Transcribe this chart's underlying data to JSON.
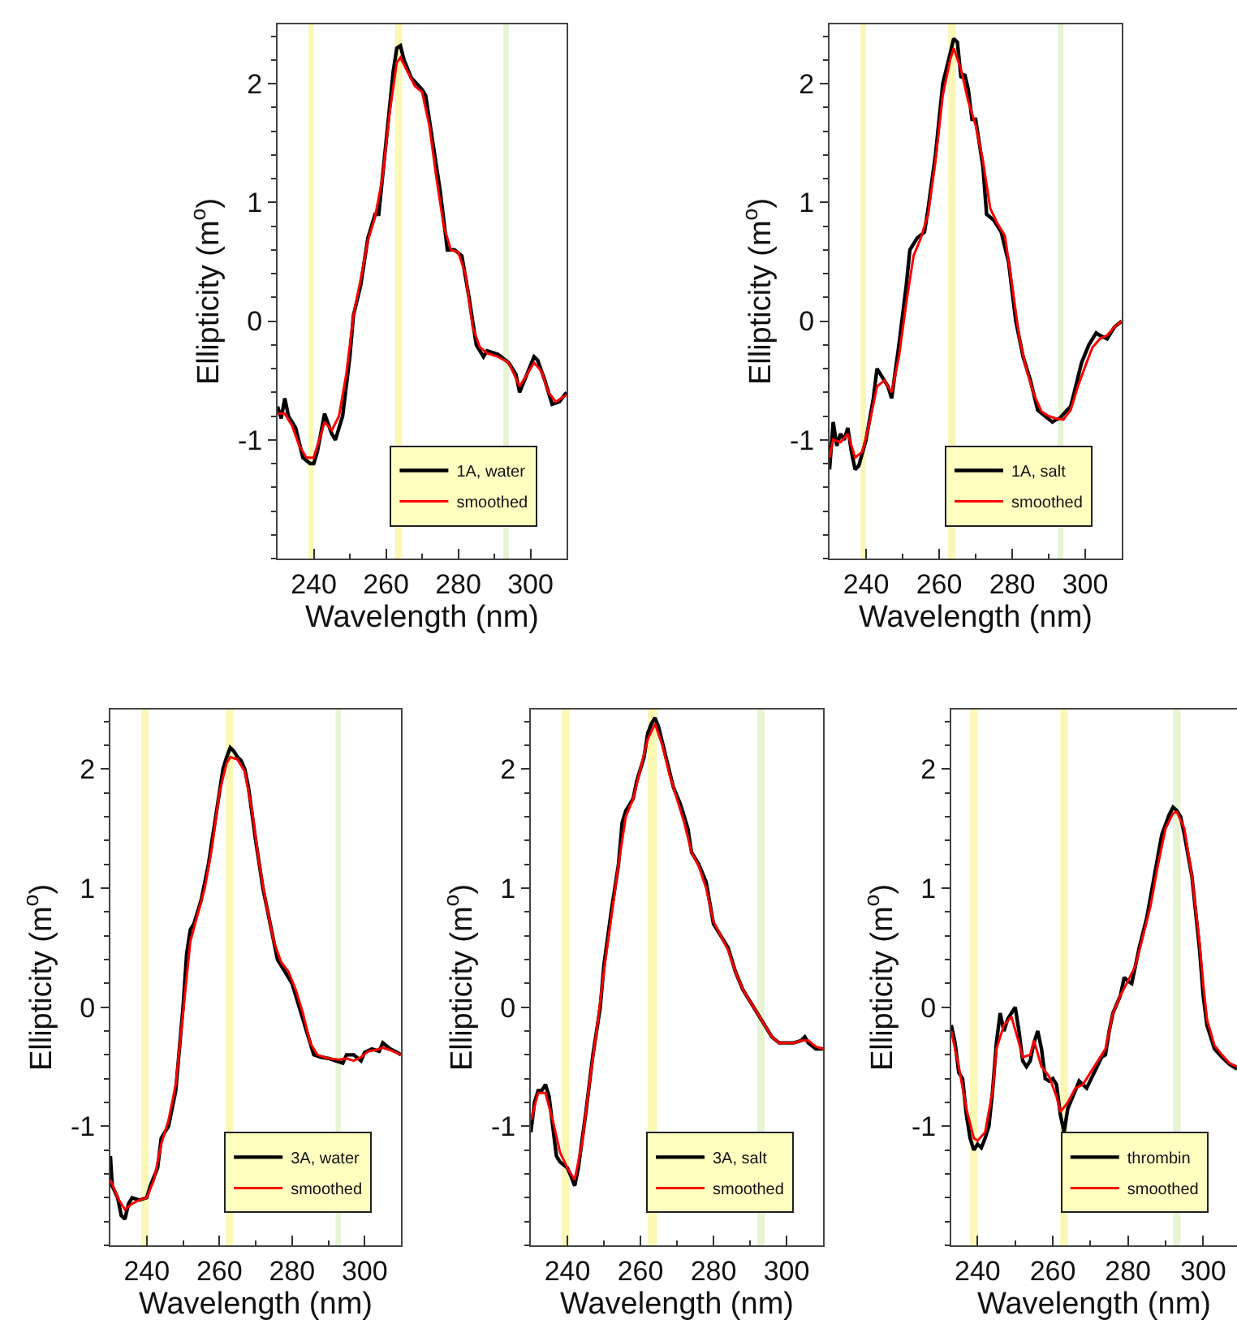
{
  "chart_data": [
    {
      "type": "line",
      "xlabel": "Wavelength (nm)",
      "ylabel": "Ellipticity (m$^{o}$)",
      "xlim": [
        230,
        310
      ],
      "ylim": [
        -2,
        2.5
      ],
      "xticks": [
        240,
        260,
        280,
        300
      ],
      "yticks": [
        -1,
        0,
        1,
        2
      ],
      "legend": "bottom right",
      "bands": [
        {
          "axis": "x",
          "from": 238.5,
          "to": 240,
          "color": "#fbf7b5"
        },
        {
          "axis": "x",
          "from": 262.5,
          "to": 264.5,
          "color": "#fbf7b5"
        },
        {
          "axis": "x",
          "from": 292.5,
          "to": 294,
          "color": "#e6f4d4"
        }
      ],
      "series": [
        {
          "name": "1A, water",
          "color": "#000000",
          "x": [
            230,
            231,
            232,
            233,
            235,
            237,
            239,
            240,
            241,
            243,
            245,
            246,
            248,
            250,
            251,
            253,
            255,
            257,
            258,
            260,
            262,
            263,
            264,
            265,
            267,
            270,
            271,
            273,
            275,
            277,
            279,
            281,
            283,
            285,
            287,
            288,
            291,
            294,
            296,
            297,
            299,
            301,
            302,
            304,
            306,
            308,
            310
          ],
          "values": [
            -0.72,
            -0.82,
            -0.65,
            -0.8,
            -0.9,
            -1.15,
            -1.2,
            -1.2,
            -1.1,
            -0.78,
            -0.95,
            -1.0,
            -0.8,
            -0.3,
            0.05,
            0.3,
            0.7,
            0.9,
            0.9,
            1.5,
            2.1,
            2.3,
            2.32,
            2.2,
            2.05,
            1.95,
            1.9,
            1.5,
            1.1,
            0.6,
            0.6,
            0.55,
            0.2,
            -0.2,
            -0.3,
            -0.25,
            -0.28,
            -0.35,
            -0.45,
            -0.6,
            -0.45,
            -0.3,
            -0.33,
            -0.5,
            -0.7,
            -0.68,
            -0.6
          ]
        },
        {
          "name": "smoothed",
          "color": "#ff0000",
          "x": [
            230,
            232,
            234,
            236,
            238,
            240,
            242,
            243,
            245,
            247,
            249,
            251,
            253,
            255,
            257,
            259,
            261,
            263,
            264,
            266,
            268,
            270,
            272,
            274,
            276,
            278,
            280,
            282,
            284,
            286,
            288,
            291,
            294,
            297,
            299,
            301,
            303,
            305,
            307,
            310
          ],
          "values": [
            -0.78,
            -0.78,
            -0.88,
            -1.05,
            -1.15,
            -1.15,
            -0.95,
            -0.85,
            -0.92,
            -0.8,
            -0.45,
            0.05,
            0.35,
            0.68,
            0.88,
            1.2,
            1.75,
            2.18,
            2.22,
            2.1,
            1.98,
            1.93,
            1.65,
            1.2,
            0.8,
            0.6,
            0.58,
            0.4,
            -0.05,
            -0.22,
            -0.27,
            -0.3,
            -0.35,
            -0.55,
            -0.45,
            -0.35,
            -0.42,
            -0.6,
            -0.68,
            -0.62
          ]
        }
      ]
    },
    {
      "type": "line",
      "xlabel": "Wavelength (nm)",
      "ylabel": "Ellipticity (m$^{o}$)",
      "xlim": [
        230,
        310
      ],
      "ylim": [
        -2,
        2.5
      ],
      "xticks": [
        240,
        260,
        280,
        300
      ],
      "yticks": [
        -1,
        0,
        1,
        2
      ],
      "legend": "bottom right",
      "bands": [
        {
          "axis": "x",
          "from": 238.5,
          "to": 240,
          "color": "#fbf7b5"
        },
        {
          "axis": "x",
          "from": 262.5,
          "to": 264.5,
          "color": "#fbf7b5"
        },
        {
          "axis": "x",
          "from": 292.5,
          "to": 294,
          "color": "#e6f4d4"
        }
      ],
      "series": [
        {
          "name": "1A, salt",
          "color": "#000000",
          "x": [
            230,
            231,
            232,
            233,
            234,
            235,
            236,
            237,
            238,
            240,
            242,
            243,
            244,
            246,
            247,
            249,
            251,
            252,
            254,
            256,
            257,
            259,
            261,
            263,
            264,
            265,
            266,
            267,
            268,
            269,
            270,
            272,
            273,
            275,
            277,
            279,
            281,
            283,
            285,
            287,
            289,
            291,
            292,
            293,
            295,
            296,
            297,
            299,
            301,
            303,
            304,
            306,
            308,
            310
          ],
          "values": [
            -1.25,
            -0.85,
            -1.05,
            -0.95,
            -1.0,
            -0.9,
            -1.1,
            -1.25,
            -1.22,
            -1.0,
            -0.65,
            -0.4,
            -0.45,
            -0.55,
            -0.65,
            -0.2,
            0.3,
            0.6,
            0.7,
            0.75,
            0.95,
            1.4,
            2.0,
            2.25,
            2.38,
            2.35,
            2.05,
            2.08,
            1.95,
            1.7,
            1.7,
            1.3,
            0.9,
            0.85,
            0.75,
            0.5,
            0.0,
            -0.3,
            -0.5,
            -0.75,
            -0.8,
            -0.85,
            -0.83,
            -0.82,
            -0.75,
            -0.72,
            -0.6,
            -0.35,
            -0.2,
            -0.1,
            -0.12,
            -0.15,
            -0.05,
            0.0
          ]
        },
        {
          "name": "smoothed",
          "color": "#ff0000",
          "x": [
            230,
            231,
            233,
            235,
            237,
            239,
            241,
            243,
            245,
            247,
            249,
            251,
            253,
            255,
            257,
            259,
            261,
            263,
            264,
            266,
            268,
            270,
            272,
            274,
            276,
            278,
            280,
            282,
            284,
            286,
            288,
            290,
            292,
            294,
            296,
            298,
            300,
            302,
            304,
            306,
            308,
            310
          ],
          "values": [
            -1.15,
            -1.0,
            -1.02,
            -0.95,
            -1.15,
            -1.1,
            -0.85,
            -0.55,
            -0.5,
            -0.6,
            -0.3,
            0.15,
            0.55,
            0.7,
            0.9,
            1.35,
            1.9,
            2.2,
            2.3,
            2.12,
            1.85,
            1.65,
            1.35,
            0.95,
            0.82,
            0.72,
            0.3,
            -0.15,
            -0.42,
            -0.62,
            -0.76,
            -0.8,
            -0.82,
            -0.83,
            -0.75,
            -0.55,
            -0.38,
            -0.22,
            -0.15,
            -0.12,
            -0.05,
            0.0
          ]
        }
      ]
    },
    {
      "type": "line",
      "xlabel": "Wavelength (nm)",
      "ylabel": "Ellipticity (m$^{o}$)",
      "xlim": [
        230,
        310
      ],
      "ylim": [
        -2,
        2.5
      ],
      "xticks": [
        240,
        260,
        280,
        300
      ],
      "yticks": [
        -1,
        0,
        1,
        2
      ],
      "legend": "bottom right",
      "bands": [
        {
          "axis": "x",
          "from": 238.5,
          "to": 240.5,
          "color": "#fbf7b5"
        },
        {
          "axis": "x",
          "from": 261.8,
          "to": 263.8,
          "color": "#fbf7b5"
        },
        {
          "axis": "x",
          "from": 292,
          "to": 293.5,
          "color": "#e6f4d4"
        }
      ],
      "series": [
        {
          "name": "3A, water",
          "color": "#000000",
          "x": [
            230,
            230.5,
            232,
            233,
            234,
            235,
            236,
            238,
            240,
            241,
            243,
            244,
            245,
            246,
            248,
            250,
            251,
            252,
            253,
            255,
            257,
            259,
            261,
            262,
            263,
            264,
            265,
            266,
            267,
            268,
            270,
            272,
            274,
            276,
            278,
            280,
            282,
            284,
            286,
            288,
            290,
            292,
            294,
            295,
            297,
            299,
            300,
            302,
            304,
            305,
            307,
            309,
            310
          ],
          "values": [
            -1.25,
            -1.5,
            -1.6,
            -1.75,
            -1.78,
            -1.65,
            -1.6,
            -1.62,
            -1.6,
            -1.5,
            -1.35,
            -1.1,
            -1.05,
            -1.0,
            -0.7,
            0.0,
            0.45,
            0.65,
            0.7,
            0.9,
            1.2,
            1.6,
            2.0,
            2.1,
            2.18,
            2.15,
            2.1,
            2.07,
            2.0,
            1.85,
            1.4,
            1.0,
            0.7,
            0.4,
            0.3,
            0.2,
            0.0,
            -0.2,
            -0.4,
            -0.42,
            -0.43,
            -0.45,
            -0.47,
            -0.4,
            -0.4,
            -0.45,
            -0.38,
            -0.35,
            -0.37,
            -0.3,
            -0.35,
            -0.38,
            -0.4
          ]
        },
        {
          "name": "smoothed",
          "color": "#ff0000",
          "x": [
            230,
            232,
            234,
            236,
            238,
            240,
            242,
            244,
            246,
            248,
            250,
            252,
            254,
            256,
            258,
            260,
            262,
            263,
            265,
            267,
            269,
            271,
            273,
            275,
            277,
            279,
            281,
            283,
            285,
            287,
            290,
            293,
            295,
            297,
            299,
            301,
            303,
            305,
            307,
            310
          ],
          "values": [
            -1.45,
            -1.6,
            -1.7,
            -1.65,
            -1.62,
            -1.6,
            -1.45,
            -1.15,
            -0.95,
            -0.65,
            -0.05,
            0.55,
            0.78,
            1.0,
            1.35,
            1.8,
            2.05,
            2.1,
            2.08,
            1.98,
            1.65,
            1.2,
            0.85,
            0.55,
            0.38,
            0.3,
            0.15,
            -0.05,
            -0.3,
            -0.4,
            -0.43,
            -0.44,
            -0.43,
            -0.45,
            -0.42,
            -0.37,
            -0.36,
            -0.34,
            -0.36,
            -0.4
          ]
        }
      ]
    },
    {
      "type": "line",
      "xlabel": "Wavelength (nm)",
      "ylabel": "Ellipticity (m$^{o}$)",
      "xlim": [
        230,
        310
      ],
      "ylim": [
        -2,
        2.5
      ],
      "xticks": [
        240,
        260,
        280,
        300
      ],
      "yticks": [
        -1,
        0,
        1,
        2
      ],
      "legend": "bottom right",
      "bands": [
        {
          "axis": "x",
          "from": 238.5,
          "to": 240.5,
          "color": "#fbf7b5"
        },
        {
          "axis": "x",
          "from": 262,
          "to": 264.5,
          "color": "#fbf7b5"
        },
        {
          "axis": "x",
          "from": 292,
          "to": 294,
          "color": "#e6f4d4"
        }
      ],
      "series": [
        {
          "name": "3A, salt",
          "color": "#000000",
          "x": [
            230,
            231,
            232,
            233,
            234,
            235,
            236,
            237,
            238,
            240,
            241,
            242,
            243,
            245,
            247,
            249,
            250,
            252,
            254,
            255,
            256,
            258,
            259,
            261,
            262,
            263,
            264,
            265,
            267,
            269,
            271,
            273,
            274,
            276,
            278,
            280,
            282,
            284,
            286,
            288,
            290,
            292,
            294,
            296,
            298,
            300,
            302,
            304,
            305,
            306,
            308,
            310
          ],
          "values": [
            -1.05,
            -0.8,
            -0.7,
            -0.7,
            -0.65,
            -0.75,
            -1.0,
            -1.25,
            -1.3,
            -1.35,
            -1.42,
            -1.5,
            -1.35,
            -0.9,
            -0.4,
            0.0,
            0.35,
            0.8,
            1.2,
            1.55,
            1.65,
            1.75,
            1.9,
            2.1,
            2.3,
            2.38,
            2.43,
            2.35,
            2.1,
            1.85,
            1.7,
            1.5,
            1.3,
            1.2,
            1.05,
            0.7,
            0.6,
            0.5,
            0.3,
            0.15,
            0.05,
            -0.05,
            -0.15,
            -0.25,
            -0.3,
            -0.3,
            -0.3,
            -0.28,
            -0.25,
            -0.3,
            -0.35,
            -0.35
          ]
        },
        {
          "name": "smoothed",
          "color": "#ff0000",
          "x": [
            230,
            232,
            234,
            236,
            238,
            240,
            242,
            244,
            246,
            248,
            250,
            252,
            254,
            256,
            258,
            260,
            262,
            264,
            266,
            268,
            270,
            272,
            274,
            276,
            278,
            280,
            282,
            284,
            286,
            288,
            290,
            292,
            294,
            296,
            298,
            300,
            302,
            304,
            306,
            308,
            310
          ],
          "values": [
            -0.95,
            -0.72,
            -0.72,
            -0.95,
            -1.22,
            -1.35,
            -1.45,
            -1.15,
            -0.65,
            -0.2,
            0.3,
            0.75,
            1.2,
            1.6,
            1.75,
            2.0,
            2.25,
            2.38,
            2.2,
            1.95,
            1.75,
            1.55,
            1.3,
            1.18,
            1.0,
            0.72,
            0.6,
            0.48,
            0.3,
            0.15,
            0.05,
            -0.05,
            -0.15,
            -0.25,
            -0.3,
            -0.3,
            -0.3,
            -0.28,
            -0.28,
            -0.33,
            -0.35
          ]
        }
      ]
    },
    {
      "type": "line",
      "xlabel": "Wavelength (nm)",
      "ylabel": "Ellipticity (m$^{o}$)",
      "xlim": [
        233,
        309
      ],
      "ylim": [
        -2,
        2.5
      ],
      "xticks": [
        240,
        260,
        280,
        300
      ],
      "yticks": [
        -1,
        0,
        1,
        2
      ],
      "legend": "bottom right",
      "bands": [
        {
          "axis": "x",
          "from": 238,
          "to": 240,
          "color": "#fbf7b5"
        },
        {
          "axis": "x",
          "from": 262,
          "to": 264,
          "color": "#fbf7b5"
        },
        {
          "axis": "x",
          "from": 292,
          "to": 294,
          "color": "#e6f4d4"
        }
      ],
      "series": [
        {
          "name": "thrombin",
          "color": "#000000",
          "x": [
            233,
            234,
            235,
            236,
            237,
            238,
            239,
            240,
            241,
            242,
            243,
            244,
            245,
            246,
            247,
            248,
            249,
            250,
            251,
            252,
            253,
            254,
            255,
            256,
            257,
            258,
            259,
            260,
            261,
            262,
            263,
            264,
            266,
            267,
            269,
            271,
            273,
            274,
            275,
            276,
            278,
            279,
            280,
            281,
            283,
            285,
            287,
            289,
            291,
            292,
            293,
            294,
            295,
            297,
            299,
            300,
            301,
            303,
            305,
            307,
            309
          ],
          "values": [
            -0.15,
            -0.3,
            -0.55,
            -0.6,
            -0.9,
            -1.1,
            -1.2,
            -1.15,
            -1.18,
            -1.1,
            -1.0,
            -0.7,
            -0.3,
            -0.05,
            -0.2,
            -0.1,
            -0.05,
            0.0,
            -0.2,
            -0.45,
            -0.5,
            -0.45,
            -0.3,
            -0.2,
            -0.35,
            -0.6,
            -0.62,
            -0.6,
            -0.65,
            -0.9,
            -1.05,
            -0.85,
            -0.7,
            -0.62,
            -0.68,
            -0.55,
            -0.42,
            -0.4,
            -0.2,
            -0.05,
            0.1,
            0.25,
            0.22,
            0.2,
            0.5,
            0.75,
            1.1,
            1.45,
            1.62,
            1.68,
            1.65,
            1.6,
            1.45,
            1.1,
            0.5,
            0.1,
            -0.15,
            -0.35,
            -0.42,
            -0.48,
            -0.52
          ]
        },
        {
          "name": "smoothed",
          "color": "#ff0000",
          "x": [
            233,
            235,
            237,
            239,
            240,
            242,
            244,
            245,
            247,
            249,
            251,
            252,
            254,
            255,
            257,
            259,
            261,
            262,
            264,
            266,
            268,
            270,
            272,
            274,
            276,
            278,
            280,
            282,
            284,
            286,
            288,
            290,
            292,
            293,
            295,
            297,
            299,
            300,
            301,
            303,
            305,
            307,
            309
          ],
          "values": [
            -0.2,
            -0.5,
            -0.85,
            -1.1,
            -1.12,
            -1.05,
            -0.7,
            -0.35,
            -0.15,
            -0.08,
            -0.3,
            -0.42,
            -0.4,
            -0.28,
            -0.5,
            -0.58,
            -0.75,
            -0.88,
            -0.8,
            -0.68,
            -0.65,
            -0.55,
            -0.45,
            -0.35,
            -0.05,
            0.1,
            0.22,
            0.35,
            0.6,
            0.85,
            1.2,
            1.5,
            1.63,
            1.64,
            1.5,
            1.1,
            0.55,
            0.2,
            -0.1,
            -0.32,
            -0.4,
            -0.47,
            -0.5
          ]
        }
      ]
    }
  ]
}
